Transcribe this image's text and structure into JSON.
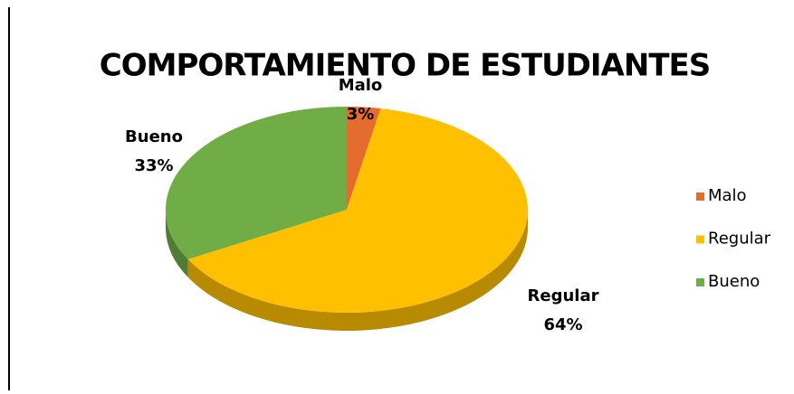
{
  "chart_data": {
    "type": "pie",
    "title": "COMPORTAMIENTO DE ESTUDIANTES",
    "categories": [
      "Malo",
      "Regular",
      "Bueno"
    ],
    "values": [
      3,
      64,
      33
    ],
    "value_labels": [
      "3%",
      "64%",
      "33%"
    ],
    "colors": [
      "#e46c2e",
      "#ffc000",
      "#70ad47"
    ],
    "legend": "right"
  }
}
